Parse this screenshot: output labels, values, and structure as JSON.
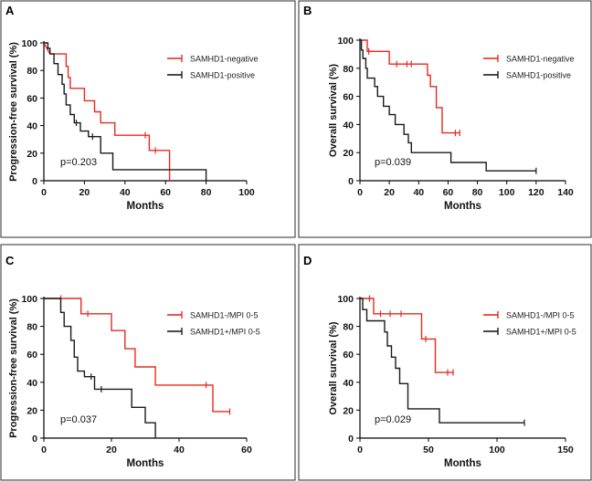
{
  "chart_data": [
    {
      "type": "line",
      "panel": "A",
      "xlabel": "Months",
      "ylabel": "Progression-free survival (%)",
      "xlim": [
        0,
        100
      ],
      "ylim": [
        0,
        100
      ],
      "xticks": [
        0,
        20,
        40,
        60,
        80,
        100
      ],
      "yticks": [
        0,
        20,
        40,
        60,
        80,
        100
      ],
      "annotation": "p=0.203",
      "series": [
        {
          "name": "SAMHD1-negative",
          "color": "#e8291f",
          "steps": [
            [
              0,
              100
            ],
            [
              3,
              92
            ],
            [
              11,
              92
            ],
            [
              11,
              83
            ],
            [
              12,
              83
            ],
            [
              12,
              75
            ],
            [
              13,
              75
            ],
            [
              13,
              67
            ],
            [
              20,
              67
            ],
            [
              20,
              58
            ],
            [
              25,
              58
            ],
            [
              25,
              50
            ],
            [
              28,
              50
            ],
            [
              28,
              42
            ],
            [
              35,
              42
            ],
            [
              35,
              33
            ],
            [
              52,
              33
            ],
            [
              52,
              22
            ],
            [
              62,
              22
            ],
            [
              62,
              0
            ]
          ],
          "censors": [
            [
              50,
              33
            ],
            [
              55,
              22
            ]
          ]
        },
        {
          "name": "SAMHD1-positive",
          "color": "#1a1a1a",
          "steps": [
            [
              0,
              100
            ],
            [
              2,
              100
            ],
            [
              2,
              96
            ],
            [
              3,
              96
            ],
            [
              3,
              92
            ],
            [
              5,
              92
            ],
            [
              5,
              85
            ],
            [
              7,
              85
            ],
            [
              7,
              77
            ],
            [
              9,
              77
            ],
            [
              9,
              70
            ],
            [
              10,
              70
            ],
            [
              10,
              63
            ],
            [
              11,
              63
            ],
            [
              11,
              55
            ],
            [
              13,
              55
            ],
            [
              13,
              48
            ],
            [
              15,
              48
            ],
            [
              15,
              42
            ],
            [
              18,
              42
            ],
            [
              18,
              36
            ],
            [
              22,
              36
            ],
            [
              22,
              32
            ],
            [
              28,
              32
            ],
            [
              28,
              20
            ],
            [
              34,
              20
            ],
            [
              34,
              8
            ],
            [
              80,
              8
            ],
            [
              80,
              0
            ]
          ],
          "censors": [
            [
              16,
              42
            ],
            [
              24,
              32
            ]
          ]
        }
      ]
    },
    {
      "type": "line",
      "panel": "B",
      "xlabel": "Months",
      "ylabel": "Overall survival (%)",
      "xlim": [
        0,
        140
      ],
      "ylim": [
        0,
        100
      ],
      "xticks": [
        0,
        20,
        40,
        60,
        80,
        100,
        120,
        140
      ],
      "yticks": [
        0,
        20,
        40,
        60,
        80,
        100
      ],
      "annotation": "p=0.039",
      "series": [
        {
          "name": "SAMHD1-negative",
          "color": "#e8291f",
          "steps": [
            [
              0,
              100
            ],
            [
              5,
              100
            ],
            [
              5,
              92
            ],
            [
              20,
              92
            ],
            [
              20,
              83
            ],
            [
              46,
              83
            ],
            [
              46,
              75
            ],
            [
              48,
              75
            ],
            [
              48,
              67
            ],
            [
              52,
              67
            ],
            [
              52,
              52
            ],
            [
              56,
              52
            ],
            [
              56,
              34
            ],
            [
              68,
              34
            ]
          ],
          "censors": [
            [
              6,
              92
            ],
            [
              25,
              83
            ],
            [
              32,
              83
            ],
            [
              35,
              83
            ],
            [
              65,
              34
            ],
            [
              68,
              34
            ]
          ]
        },
        {
          "name": "SAMHD1-positive",
          "color": "#1a1a1a",
          "steps": [
            [
              0,
              100
            ],
            [
              1,
              100
            ],
            [
              1,
              93
            ],
            [
              2,
              93
            ],
            [
              2,
              87
            ],
            [
              4,
              87
            ],
            [
              4,
              80
            ],
            [
              5,
              80
            ],
            [
              5,
              73
            ],
            [
              10,
              73
            ],
            [
              10,
              67
            ],
            [
              12,
              67
            ],
            [
              12,
              60
            ],
            [
              16,
              60
            ],
            [
              16,
              53
            ],
            [
              20,
              53
            ],
            [
              20,
              47
            ],
            [
              24,
              47
            ],
            [
              24,
              40
            ],
            [
              30,
              40
            ],
            [
              30,
              33
            ],
            [
              33,
              33
            ],
            [
              33,
              27
            ],
            [
              35,
              27
            ],
            [
              35,
              20
            ],
            [
              62,
              20
            ],
            [
              62,
              13
            ],
            [
              86,
              13
            ],
            [
              86,
              7
            ],
            [
              120,
              7
            ]
          ],
          "censors": [
            [
              120,
              7
            ]
          ]
        }
      ]
    },
    {
      "type": "line",
      "panel": "C",
      "xlabel": "Months",
      "ylabel": "Progression-free survival (%)",
      "xlim": [
        0,
        60
      ],
      "ylim": [
        0,
        100
      ],
      "xticks": [
        0,
        20,
        40,
        60
      ],
      "yticks": [
        0,
        20,
        40,
        60,
        80,
        100
      ],
      "annotation": "p=0.037",
      "series": [
        {
          "name": "SAMHD1-/MPI 0-5",
          "color": "#e8291f",
          "steps": [
            [
              0,
              100
            ],
            [
              11,
              100
            ],
            [
              11,
              89
            ],
            [
              20,
              89
            ],
            [
              20,
              77
            ],
            [
              24,
              77
            ],
            [
              24,
              64
            ],
            [
              27,
              64
            ],
            [
              27,
              51
            ],
            [
              33,
              51
            ],
            [
              33,
              38
            ],
            [
              50,
              38
            ],
            [
              50,
              19
            ],
            [
              55,
              19
            ]
          ],
          "censors": [
            [
              5,
              100
            ],
            [
              13,
              89
            ],
            [
              48,
              38
            ],
            [
              55,
              19
            ]
          ]
        },
        {
          "name": "SAMHD1+/MPI 0-5",
          "color": "#1a1a1a",
          "steps": [
            [
              0,
              100
            ],
            [
              5,
              100
            ],
            [
              5,
              90
            ],
            [
              6,
              90
            ],
            [
              6,
              80
            ],
            [
              8,
              80
            ],
            [
              8,
              70
            ],
            [
              9,
              70
            ],
            [
              9,
              58
            ],
            [
              10,
              58
            ],
            [
              10,
              48
            ],
            [
              12,
              48
            ],
            [
              12,
              44
            ],
            [
              15,
              44
            ],
            [
              15,
              35
            ],
            [
              26,
              35
            ],
            [
              26,
              22
            ],
            [
              30,
              22
            ],
            [
              30,
              11
            ],
            [
              33,
              11
            ],
            [
              33,
              0
            ]
          ],
          "censors": [
            [
              14,
              44
            ],
            [
              17,
              35
            ]
          ]
        }
      ]
    },
    {
      "type": "line",
      "panel": "D",
      "xlabel": "Months",
      "ylabel": "Overall survival (%)",
      "xlim": [
        0,
        150
      ],
      "ylim": [
        0,
        100
      ],
      "xticks": [
        0,
        50,
        100,
        150
      ],
      "yticks": [
        0,
        20,
        40,
        60,
        80,
        100
      ],
      "annotation": "p=0.029",
      "series": [
        {
          "name": "SAMHD1-/MPI 0-5",
          "color": "#e8291f",
          "steps": [
            [
              0,
              100
            ],
            [
              10,
              100
            ],
            [
              10,
              89
            ],
            [
              45,
              89
            ],
            [
              45,
              71
            ],
            [
              55,
              71
            ],
            [
              55,
              47
            ],
            [
              68,
              47
            ]
          ],
          "censors": [
            [
              7,
              100
            ],
            [
              15,
              89
            ],
            [
              22,
              89
            ],
            [
              30,
              89
            ],
            [
              48,
              71
            ],
            [
              64,
              47
            ],
            [
              68,
              47
            ]
          ]
        },
        {
          "name": "SAMHD1+/MPI 0-5",
          "color": "#1a1a1a",
          "steps": [
            [
              0,
              100
            ],
            [
              2,
              100
            ],
            [
              2,
              92
            ],
            [
              5,
              92
            ],
            [
              5,
              84
            ],
            [
              18,
              84
            ],
            [
              18,
              76
            ],
            [
              20,
              76
            ],
            [
              20,
              66
            ],
            [
              23,
              66
            ],
            [
              23,
              58
            ],
            [
              26,
              58
            ],
            [
              26,
              50
            ],
            [
              29,
              50
            ],
            [
              29,
              39
            ],
            [
              35,
              39
            ],
            [
              35,
              21
            ],
            [
              58,
              21
            ],
            [
              58,
              11
            ],
            [
              120,
              11
            ]
          ],
          "censors": [
            [
              120,
              11
            ]
          ]
        }
      ]
    }
  ]
}
